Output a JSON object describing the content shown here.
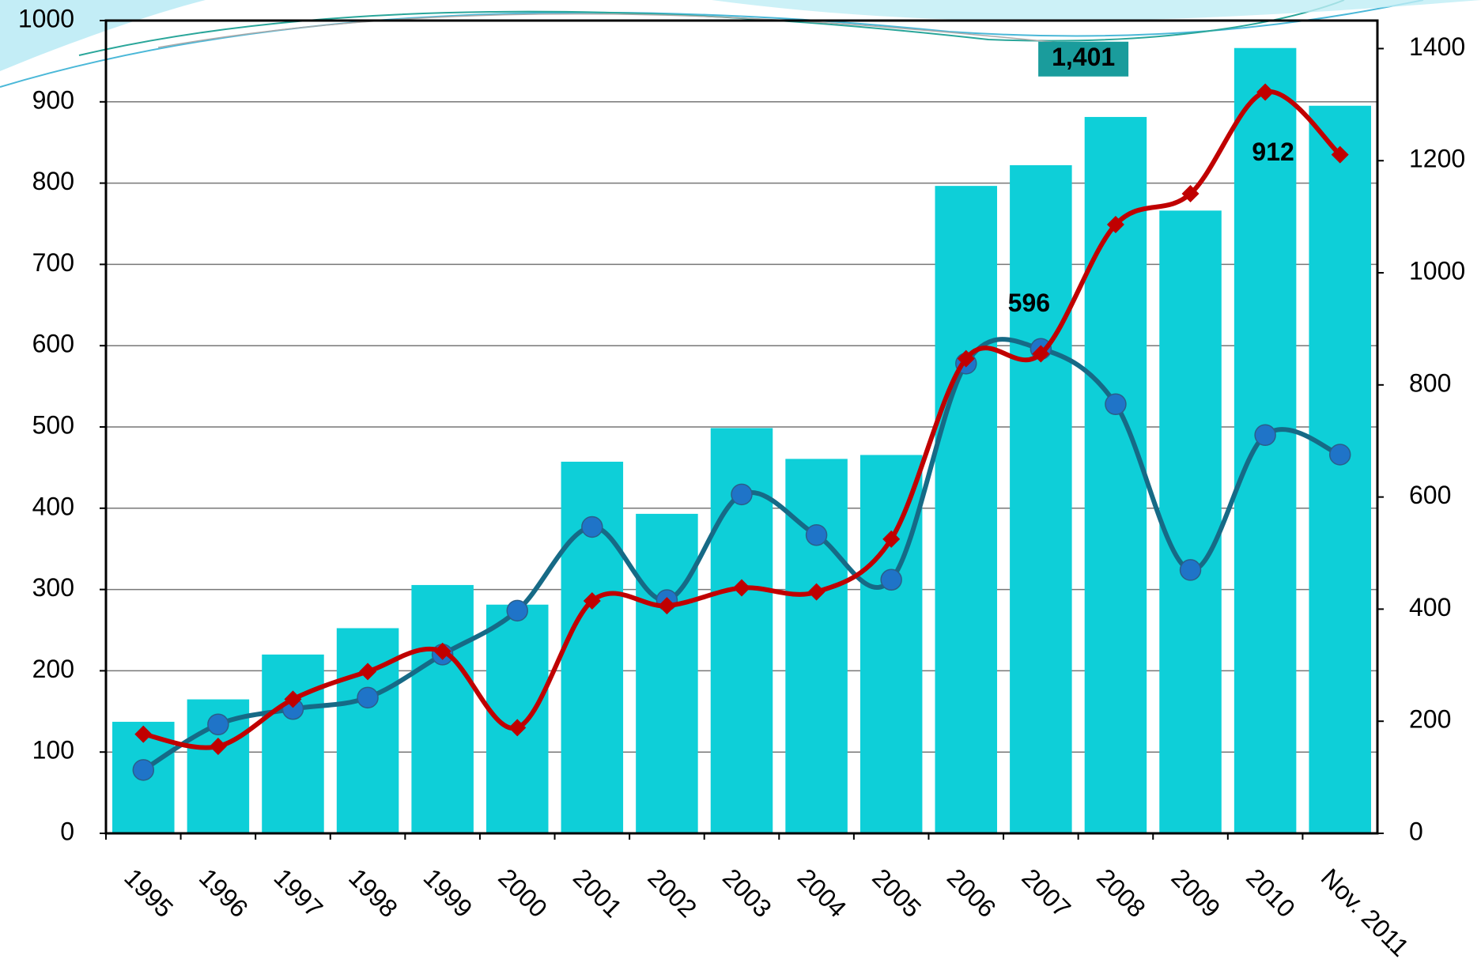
{
  "chart_data": {
    "type": "bar-line",
    "categories": [
      "1995",
      "1996",
      "1997",
      "1998",
      "1999",
      "2000",
      "2001",
      "2002",
      "2003",
      "2004",
      "2005",
      "2006",
      "2007",
      "2008",
      "2009",
      "2010",
      "Nov. 2011"
    ],
    "series": [
      {
        "type": "bar",
        "axis": "y2",
        "color": "#0ecfd8",
        "values": [
          199,
          239,
          319,
          366,
          443,
          408,
          663,
          570,
          723,
          668,
          675,
          1155,
          1192,
          1278,
          1111,
          1401,
          1298
        ],
        "value_labels": [
          null,
          null,
          null,
          null,
          null,
          null,
          null,
          null,
          null,
          null,
          null,
          null,
          null,
          null,
          null,
          "1,401",
          null
        ]
      },
      {
        "type": "line",
        "axis": "y",
        "color": "#166a86",
        "marker_color": "#1f74c8",
        "marker": "circle",
        "values": [
          78,
          134,
          153,
          167,
          220,
          274,
          377,
          287,
          417,
          367,
          312,
          578,
          596,
          528,
          324,
          490,
          466
        ],
        "value_labels": [
          null,
          null,
          null,
          null,
          null,
          null,
          null,
          null,
          null,
          null,
          null,
          null,
          "596",
          null,
          null,
          null,
          null
        ]
      },
      {
        "type": "line",
        "axis": "y",
        "color": "#c00000",
        "marker_color": "#c00000",
        "marker": "diamond",
        "values": [
          122,
          107,
          165,
          199,
          224,
          130,
          286,
          280,
          302,
          297,
          362,
          584,
          590,
          749,
          787,
          912,
          835
        ],
        "value_labels": [
          null,
          null,
          null,
          null,
          null,
          null,
          null,
          null,
          null,
          null,
          null,
          null,
          null,
          null,
          null,
          "912",
          null
        ]
      }
    ],
    "ylim": [
      0,
      1000
    ],
    "yticks": [
      0,
      100,
      200,
      300,
      400,
      500,
      600,
      700,
      800,
      900,
      1000
    ],
    "y2lim": [
      0,
      1450
    ],
    "y2ticks": [
      0,
      200,
      400,
      600,
      800,
      1000,
      1200,
      1400
    ],
    "grid": true
  }
}
